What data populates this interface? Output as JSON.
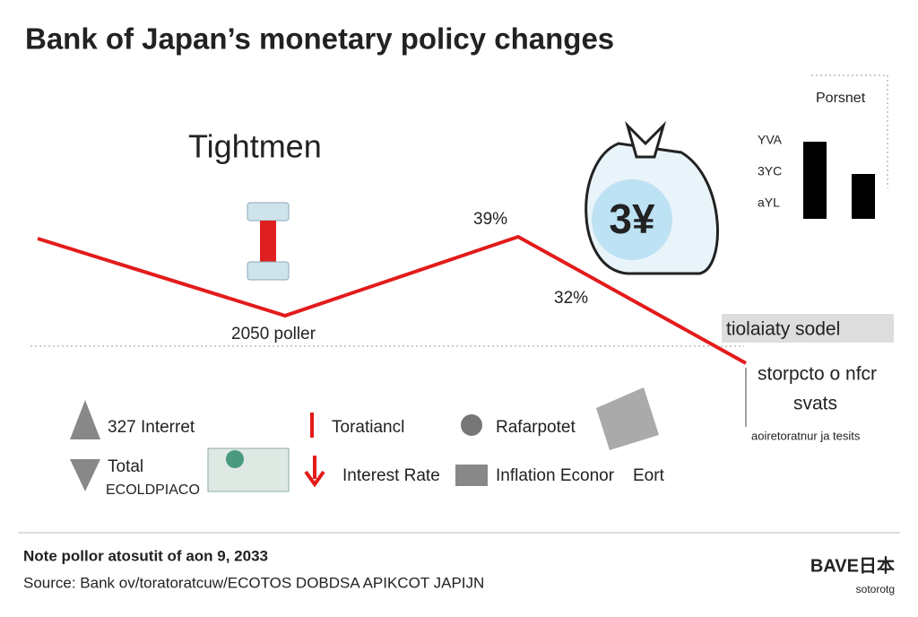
{
  "header": {
    "title": "Bank of Japan’s monetary policy changes"
  },
  "main": {
    "phase_label": "Tightmen",
    "peak_label": "39%",
    "drop_label": "32%",
    "trough_label": "2050 poller"
  },
  "inset": {
    "title": "Porsnet",
    "labels": [
      "YVA",
      "3YC",
      "aYL"
    ]
  },
  "side": {
    "box_label": "tiolaiaty sodel",
    "line1": "storpcto o nfcr",
    "line2": "svats",
    "note": "aoiretoratnur ja tesits"
  },
  "legend": {
    "items": [
      "327 Interret",
      "Total",
      "ECOLDPIACO",
      "Toratiancl",
      "Interest Rate",
      "Rafarpotet",
      "Inflation Econor",
      "Eort"
    ]
  },
  "icon_label": "3¥",
  "footer": {
    "note": "Note pollor atosutit of aon 9, 2033",
    "source": "Source: Bank ov/toratoratcuw/ECOTOS DOBDSA APIKCOT JAPIJN",
    "logo": "BAVE日本",
    "logo_sub": "sotorotg"
  }
}
